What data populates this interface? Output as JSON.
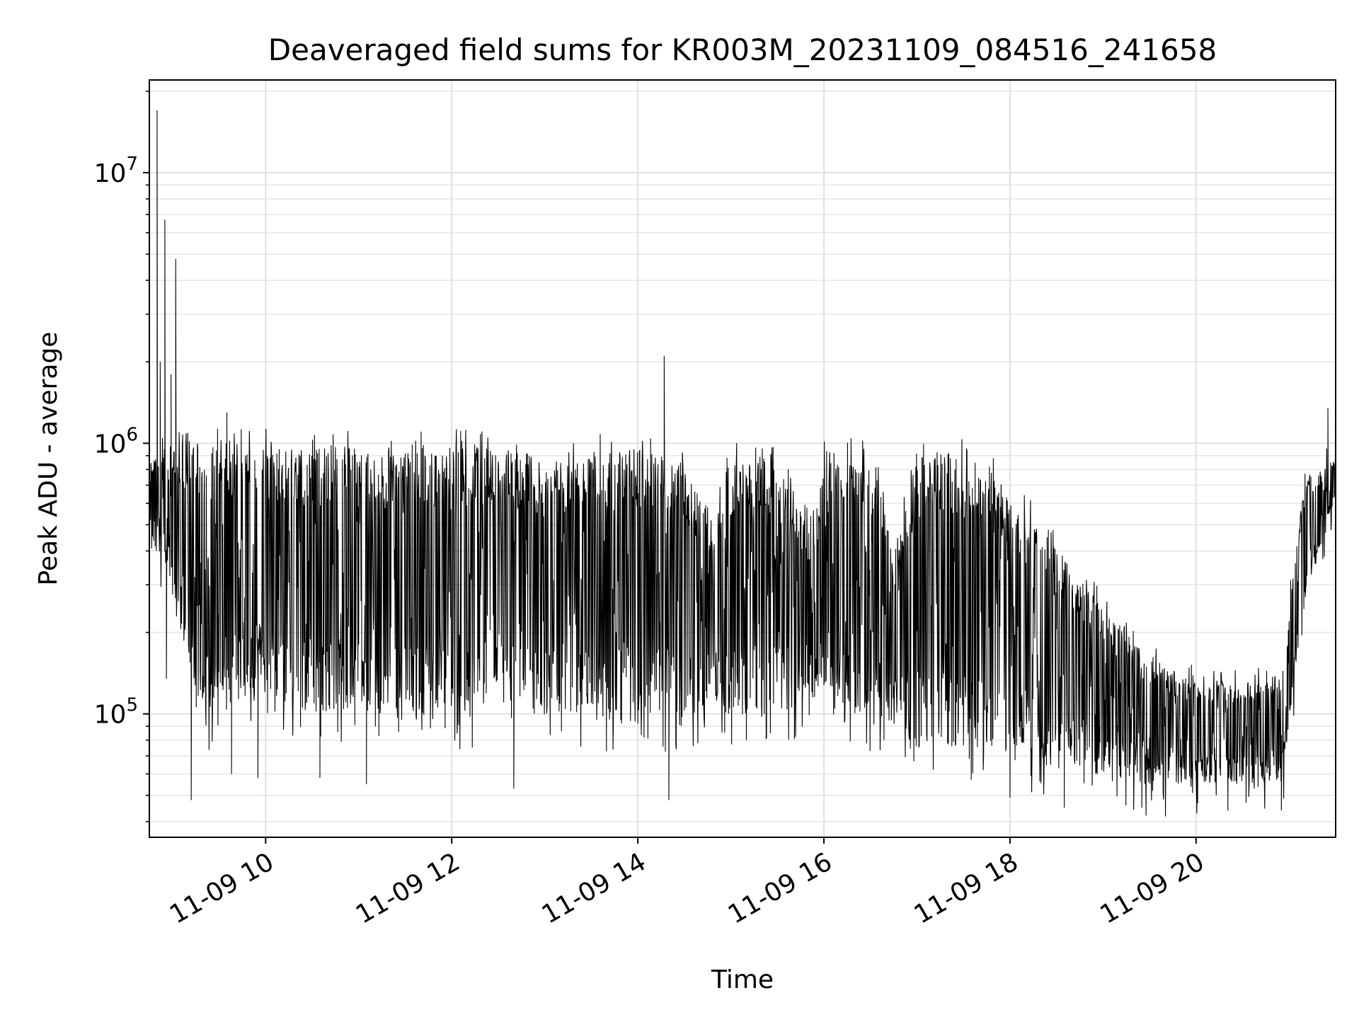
{
  "chart_data": {
    "type": "line",
    "title": "Deaveraged field sums for KR003M_20231109_084516_241658",
    "xlabel": "Time",
    "ylabel": "Peak ADU - average",
    "yscale": "log",
    "ylim": [
      35000,
      22000000
    ],
    "xlim": [
      "2023-11-09 08:45",
      "2023-11-09 21:30"
    ],
    "grid": true,
    "line_color": "#000000",
    "x_ticks": [
      {
        "value": "2023-11-09 10:00",
        "label": "11-09 10"
      },
      {
        "value": "2023-11-09 12:00",
        "label": "11-09 12"
      },
      {
        "value": "2023-11-09 14:00",
        "label": "11-09 14"
      },
      {
        "value": "2023-11-09 16:00",
        "label": "11-09 16"
      },
      {
        "value": "2023-11-09 18:00",
        "label": "11-09 18"
      },
      {
        "value": "2023-11-09 20:00",
        "label": "11-09 20"
      }
    ],
    "y_ticks": [
      {
        "value": 100000,
        "base": "10",
        "exp": "5"
      },
      {
        "value": 1000000,
        "base": "10",
        "exp": "6"
      },
      {
        "value": 10000000,
        "base": "10",
        "exp": "7"
      }
    ],
    "series": [
      {
        "band": [
          {
            "t": "2023-11-09 08:45",
            "low": 450000,
            "high": 900000
          },
          {
            "t": "2023-11-09 09:00",
            "low": 300000,
            "high": 1000000
          },
          {
            "t": "2023-11-09 09:15",
            "low": 90000,
            "high": 1000000
          },
          {
            "t": "2023-11-09 09:30",
            "low": 100000,
            "high": 1050000
          },
          {
            "t": "2023-11-09 10:00",
            "low": 120000,
            "high": 1000000
          },
          {
            "t": "2023-11-09 10:30",
            "low": 100000,
            "high": 950000
          },
          {
            "t": "2023-11-09 11:00",
            "low": 100000,
            "high": 1000000
          },
          {
            "t": "2023-11-09 11:30",
            "low": 95000,
            "high": 950000
          },
          {
            "t": "2023-11-09 12:00",
            "low": 95000,
            "high": 1000000
          },
          {
            "t": "2023-11-09 12:30",
            "low": 100000,
            "high": 950000
          },
          {
            "t": "2023-11-09 13:00",
            "low": 100000,
            "high": 850000
          },
          {
            "t": "2023-11-09 13:30",
            "low": 95000,
            "high": 950000
          },
          {
            "t": "2023-11-09 14:00",
            "low": 90000,
            "high": 950000
          },
          {
            "t": "2023-11-09 14:30",
            "low": 95000,
            "high": 850000
          },
          {
            "t": "2023-11-09 14:48",
            "low": 110000,
            "high": 500000
          },
          {
            "t": "2023-11-09 15:00",
            "low": 95000,
            "high": 900000
          },
          {
            "t": "2023-11-09 15:30",
            "low": 100000,
            "high": 850000
          },
          {
            "t": "2023-11-09 15:50",
            "low": 110000,
            "high": 500000
          },
          {
            "t": "2023-11-09 16:00",
            "low": 95000,
            "high": 950000
          },
          {
            "t": "2023-11-09 16:30",
            "low": 90000,
            "high": 950000
          },
          {
            "t": "2023-11-09 16:45",
            "low": 90000,
            "high": 400000
          },
          {
            "t": "2023-11-09 17:00",
            "low": 75000,
            "high": 900000
          },
          {
            "t": "2023-11-09 17:30",
            "low": 75000,
            "high": 950000
          },
          {
            "t": "2023-11-09 18:00",
            "low": 70000,
            "high": 700000
          },
          {
            "t": "2023-11-09 18:30",
            "low": 65000,
            "high": 400000
          },
          {
            "t": "2023-11-09 19:00",
            "low": 60000,
            "high": 250000
          },
          {
            "t": "2023-11-09 19:30",
            "low": 55000,
            "high": 160000
          },
          {
            "t": "2023-11-09 20:00",
            "low": 55000,
            "high": 130000
          },
          {
            "t": "2023-11-09 20:30",
            "low": 55000,
            "high": 130000
          },
          {
            "t": "2023-11-09 20:55",
            "low": 55000,
            "high": 140000
          },
          {
            "t": "2023-11-09 21:10",
            "low": 250000,
            "high": 750000
          },
          {
            "t": "2023-11-09 21:30",
            "low": 650000,
            "high": 900000
          }
        ],
        "spikes": [
          {
            "t": "2023-11-09 08:50",
            "value": 17000000
          },
          {
            "t": "2023-11-09 08:52",
            "value": 2000000
          },
          {
            "t": "2023-11-09 08:55",
            "value": 6700000
          },
          {
            "t": "2023-11-09 08:56",
            "value": 135000
          },
          {
            "t": "2023-11-09 08:59",
            "value": 1800000
          },
          {
            "t": "2023-11-09 09:02",
            "value": 4800000
          },
          {
            "t": "2023-11-09 09:12",
            "value": 48000
          },
          {
            "t": "2023-11-09 09:35",
            "value": 1300000
          },
          {
            "t": "2023-11-09 09:38",
            "value": 60000
          },
          {
            "t": "2023-11-09 09:55",
            "value": 58000
          },
          {
            "t": "2023-11-09 10:35",
            "value": 58000
          },
          {
            "t": "2023-11-09 11:05",
            "value": 55000
          },
          {
            "t": "2023-11-09 12:40",
            "value": 53000
          },
          {
            "t": "2023-11-09 14:17",
            "value": 2100000
          },
          {
            "t": "2023-11-09 14:20",
            "value": 48000
          },
          {
            "t": "2023-11-09 18:00",
            "value": 49000
          },
          {
            "t": "2023-11-09 18:35",
            "value": 45000
          },
          {
            "t": "2023-11-09 19:25",
            "value": 45000
          },
          {
            "t": "2023-11-09 20:55",
            "value": 44000
          },
          {
            "t": "2023-11-09 21:25",
            "value": 1350000
          }
        ]
      }
    ]
  }
}
